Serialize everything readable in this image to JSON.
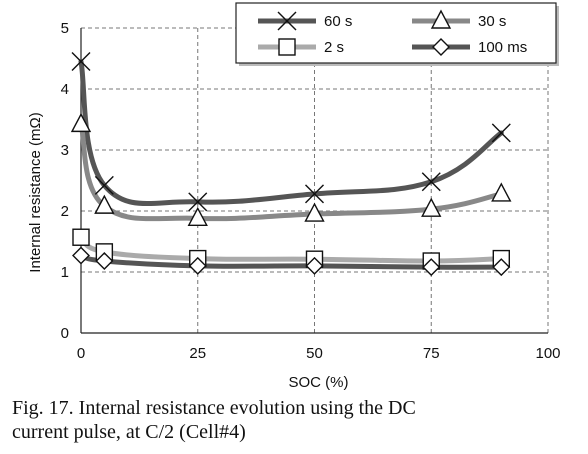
{
  "chart_data": {
    "type": "line",
    "xlabel": "SOC (%)",
    "ylabel": "Internal resistance (mΩ)",
    "xlim": [
      0,
      100
    ],
    "ylim": [
      0,
      5
    ],
    "xticks": [
      0,
      25,
      50,
      75,
      100
    ],
    "yticks": [
      0,
      1,
      2,
      3,
      4,
      5
    ],
    "grid": "dashed",
    "legend_position": "top-right",
    "series": [
      {
        "name": "60 s",
        "marker": "x",
        "color": "#555555",
        "x": [
          0,
          5,
          25,
          50,
          75,
          90
        ],
        "y": [
          4.45,
          2.42,
          2.15,
          2.28,
          2.48,
          3.28
        ]
      },
      {
        "name": "30 s",
        "marker": "triangle",
        "color": "#888888",
        "x": [
          0,
          5,
          25,
          50,
          75,
          90
        ],
        "y": [
          3.42,
          2.08,
          1.88,
          1.95,
          2.03,
          2.28
        ]
      },
      {
        "name": "2 s",
        "marker": "square",
        "color": "#aaaaaa",
        "x": [
          0,
          5,
          25,
          50,
          75,
          90
        ],
        "y": [
          1.57,
          1.33,
          1.22,
          1.21,
          1.18,
          1.22
        ]
      },
      {
        "name": "100 ms",
        "marker": "diamond",
        "color": "#555555",
        "x": [
          0,
          5,
          25,
          50,
          75,
          90
        ],
        "y": [
          1.27,
          1.18,
          1.1,
          1.1,
          1.08,
          1.08
        ]
      }
    ]
  },
  "caption": {
    "line1": "Fig. 17. Internal resistance evolution using the DC",
    "line2": "current pulse, at C/2 (Cell#4)"
  }
}
